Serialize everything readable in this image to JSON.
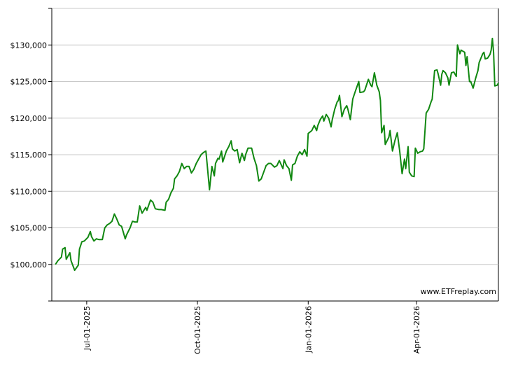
{
  "chart_data": {
    "type": "line",
    "color": "#118811",
    "watermark": "www.ETFreplay.com",
    "grid": true,
    "xlim": [
      "2025-06-02",
      "2026-06-08"
    ],
    "ylim": [
      95000,
      135000
    ],
    "xticks": [
      {
        "value": "2025-07-01",
        "label": "Jul-01-2025"
      },
      {
        "value": "2025-10-01",
        "label": "Oct-01-2025"
      },
      {
        "value": "2026-01-01",
        "label": "Jan-01-2026"
      },
      {
        "value": "2026-04-01",
        "label": "Apr-01-2026"
      }
    ],
    "yticks": [
      {
        "value": 100000,
        "label": "$100,000"
      },
      {
        "value": 105000,
        "label": "$105,000"
      },
      {
        "value": 110000,
        "label": "$110,000"
      },
      {
        "value": 115000,
        "label": "$115,000"
      },
      {
        "value": 120000,
        "label": "$120,000"
      },
      {
        "value": 125000,
        "label": "$125,000"
      },
      {
        "value": 130000,
        "label": "$130,000"
      }
    ],
    "x": [
      "2025-06-05",
      "2025-06-07",
      "2025-06-10",
      "2025-06-11",
      "2025-06-13",
      "2025-06-14",
      "2025-06-17",
      "2025-06-18",
      "2025-06-21",
      "2025-06-24",
      "2025-06-25",
      "2025-06-27",
      "2025-06-29",
      "2025-07-02",
      "2025-07-04",
      "2025-07-05",
      "2025-07-07",
      "2025-07-09",
      "2025-07-11",
      "2025-07-14",
      "2025-07-16",
      "2025-07-18",
      "2025-07-20",
      "2025-07-22",
      "2025-07-24",
      "2025-07-26",
      "2025-07-28",
      "2025-07-30",
      "2025-08-02",
      "2025-08-03",
      "2025-08-06",
      "2025-08-08",
      "2025-08-10",
      "2025-08-12",
      "2025-08-14",
      "2025-08-16",
      "2025-08-19",
      "2025-08-20",
      "2025-08-23",
      "2025-08-25",
      "2025-08-27",
      "2025-08-30",
      "2025-09-01",
      "2025-09-04",
      "2025-09-05",
      "2025-09-07",
      "2025-09-09",
      "2025-09-11",
      "2025-09-12",
      "2025-09-14",
      "2025-09-16",
      "2025-09-18",
      "2025-09-20",
      "2025-09-22",
      "2025-09-24",
      "2025-09-26",
      "2025-09-28",
      "2025-09-30",
      "2025-10-02",
      "2025-10-04",
      "2025-10-06",
      "2025-10-08",
      "2025-10-09",
      "2025-10-11",
      "2025-10-13",
      "2025-10-15",
      "2025-10-16",
      "2025-10-18",
      "2025-10-19",
      "2025-10-21",
      "2025-10-22",
      "2025-10-25",
      "2025-10-27",
      "2025-10-29",
      "2025-10-30",
      "2025-11-01",
      "2025-11-03",
      "2025-11-05",
      "2025-11-07",
      "2025-11-09",
      "2025-11-10",
      "2025-11-12",
      "2025-11-15",
      "2025-11-17",
      "2025-11-19",
      "2025-11-21",
      "2025-11-23",
      "2025-11-25",
      "2025-11-27",
      "2025-11-29",
      "2025-12-01",
      "2025-12-04",
      "2025-12-06",
      "2025-12-08",
      "2025-12-11",
      "2025-12-12",
      "2025-12-14",
      "2025-12-16",
      "2025-12-18",
      "2025-12-19",
      "2025-12-21",
      "2025-12-23",
      "2025-12-25",
      "2025-12-27",
      "2025-12-29",
      "2025-12-31",
      "2026-01-01",
      "2026-01-04",
      "2026-01-06",
      "2026-01-08",
      "2026-01-09",
      "2026-01-11",
      "2026-01-13",
      "2026-01-14",
      "2026-01-16",
      "2026-01-18",
      "2026-01-20",
      "2026-01-21",
      "2026-01-23",
      "2026-01-25",
      "2026-01-26",
      "2026-01-27",
      "2026-01-29",
      "2026-01-31",
      "2026-02-02",
      "2026-02-03",
      "2026-02-05",
      "2026-02-07",
      "2026-02-09",
      "2026-02-12",
      "2026-02-13",
      "2026-02-16",
      "2026-02-17",
      "2026-02-20",
      "2026-02-22",
      "2026-02-23",
      "2026-02-25",
      "2026-02-27",
      "2026-03-01",
      "2026-03-02",
      "2026-03-03",
      "2026-03-05",
      "2026-03-06",
      "2026-03-09",
      "2026-03-10",
      "2026-03-12",
      "2026-03-14",
      "2026-03-16",
      "2026-03-18",
      "2026-03-20",
      "2026-03-22",
      "2026-03-23",
      "2026-03-25",
      "2026-03-26",
      "2026-03-28",
      "2026-03-30",
      "2026-03-31",
      "2026-04-02",
      "2026-04-04",
      "2026-04-06",
      "2026-04-07",
      "2026-04-09",
      "2026-04-11",
      "2026-04-13",
      "2026-04-14",
      "2026-04-16",
      "2026-04-18",
      "2026-04-19",
      "2026-04-21",
      "2026-04-22",
      "2026-04-23",
      "2026-04-25",
      "2026-04-27",
      "2026-04-28",
      "2026-04-30",
      "2026-05-02",
      "2026-05-04",
      "2026-05-05",
      "2026-05-07",
      "2026-05-08",
      "2026-05-11",
      "2026-05-12",
      "2026-05-13",
      "2026-05-15",
      "2026-05-16",
      "2026-05-18",
      "2026-05-20",
      "2026-05-22",
      "2026-05-23",
      "2026-05-26",
      "2026-05-27",
      "2026-05-28",
      "2026-05-30",
      "2026-06-01",
      "2026-06-02",
      "2026-06-03",
      "2026-06-04",
      "2026-06-05",
      "2026-06-07",
      "2026-06-08"
    ],
    "values": [
      100000,
      100500,
      101000,
      102100,
      102300,
      100700,
      101600,
      100500,
      99200,
      99900,
      102100,
      103100,
      103200,
      103700,
      104500,
      103800,
      103200,
      103500,
      103400,
      103400,
      105000,
      105400,
      105600,
      105900,
      106900,
      106200,
      105400,
      105200,
      103500,
      104000,
      105000,
      105900,
      105800,
      105800,
      108000,
      107000,
      107800,
      107400,
      108800,
      108500,
      107600,
      107500,
      107500,
      107400,
      108500,
      108900,
      109800,
      110400,
      111700,
      112100,
      112700,
      113800,
      113100,
      113400,
      113400,
      112500,
      113000,
      113800,
      114400,
      115000,
      115300,
      115500,
      113800,
      110200,
      113400,
      112100,
      113800,
      114500,
      114400,
      115500,
      114000,
      115500,
      116100,
      116900,
      115800,
      115500,
      115700,
      113900,
      115200,
      114200,
      115000,
      115900,
      115900,
      114500,
      113500,
      111400,
      111700,
      112600,
      113500,
      113800,
      113800,
      113300,
      113500,
      114200,
      113100,
      114300,
      113500,
      113100,
      111500,
      113600,
      113800,
      114800,
      115400,
      115000,
      115700,
      114800,
      117900,
      118300,
      119000,
      118300,
      119000,
      119800,
      120300,
      119600,
      120500,
      120000,
      118800,
      119800,
      121200,
      122200,
      122400,
      123100,
      120200,
      121200,
      121700,
      121200,
      119800,
      122600,
      123600,
      125000,
      123500,
      123600,
      123800,
      125300,
      124500,
      124300,
      126200,
      124500,
      123600,
      122400,
      118000,
      119000,
      116400,
      117400,
      118300,
      115500,
      116900,
      118000,
      115500,
      112400,
      114400,
      113100,
      116100,
      112600,
      112100,
      112000,
      115900,
      115200,
      115400,
      115500,
      115800,
      120700,
      121200,
      122200,
      122600,
      126500,
      126600,
      126000,
      124500,
      126000,
      126500,
      126200,
      125500,
      124500,
      126200,
      126300,
      125700,
      130000,
      128800,
      129300,
      129000,
      127200,
      128400,
      125000,
      125000,
      124100,
      125400,
      126500,
      127600,
      128800,
      129000,
      128100,
      128200,
      128700,
      129300,
      130900,
      129000,
      124400,
      124500,
      124800
    ]
  }
}
